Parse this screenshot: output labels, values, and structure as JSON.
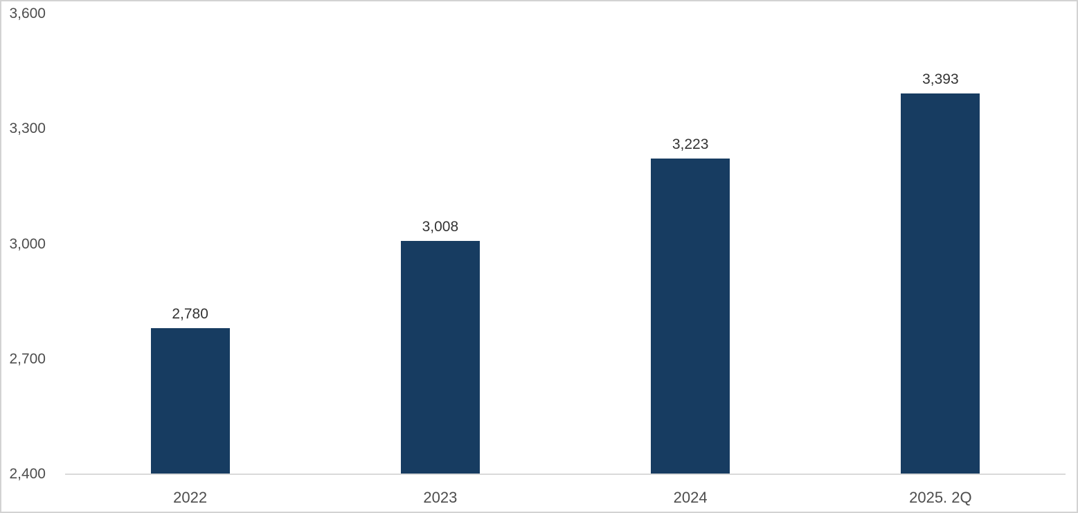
{
  "chart_data": {
    "type": "bar",
    "title": "",
    "xlabel": "",
    "ylabel": "",
    "categories": [
      "2022",
      "2023",
      "2024",
      "2025. 2Q"
    ],
    "values": [
      2780,
      3008,
      3223,
      3393
    ],
    "data_labels": [
      "2,780",
      "3,008",
      "3,223",
      "3,393"
    ],
    "ylim": [
      2400,
      3600
    ],
    "y_ticks": [
      {
        "value": 2400,
        "label": "2,400"
      },
      {
        "value": 2700,
        "label": "2,700"
      },
      {
        "value": 3000,
        "label": "3,000"
      },
      {
        "value": 3300,
        "label": "3,300"
      },
      {
        "value": 3600,
        "label": "3,600"
      }
    ],
    "grid": false,
    "legend": false,
    "colors": {
      "bar": "#173C61",
      "axis_text": "#4D4D4D",
      "label_text": "#333333",
      "axis_line": "#D9D9D9",
      "frame_border": "#D2D2D2",
      "background": "#FFFFFF"
    }
  }
}
